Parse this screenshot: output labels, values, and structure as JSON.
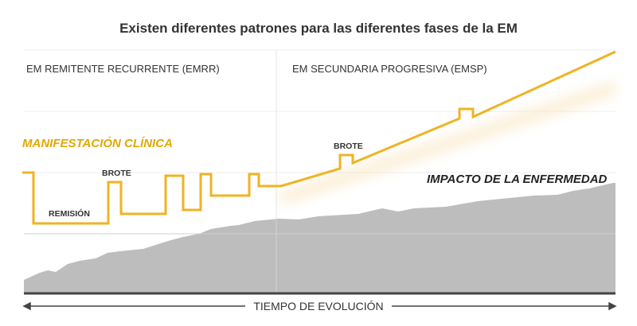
{
  "title": "Existen diferentes patrones para las diferentes fases de la EM",
  "phases": [
    "EM REMITENTE RECURRENTE (EMRR)",
    "EM SECUNDARIA PROGRESIVA (EMSP)"
  ],
  "series": {
    "clinical": {
      "label": "MANIFESTACIÓN CLÍNICA",
      "color": "#f0b323"
    },
    "impact": {
      "label": "IMPACTO DE LA ENFERMEDAD",
      "color": "#bdbdbd"
    }
  },
  "annotations": {
    "brote_1": "BROTE",
    "remision": "REMISIÓN",
    "brote_2": "BROTE"
  },
  "x_axis": {
    "label": "TIEMPO DE EVOLUCIÓN"
  },
  "colors": {
    "label_yellow": "#e2a800",
    "baseline": "#444444",
    "grid": "#eeeeee"
  }
}
